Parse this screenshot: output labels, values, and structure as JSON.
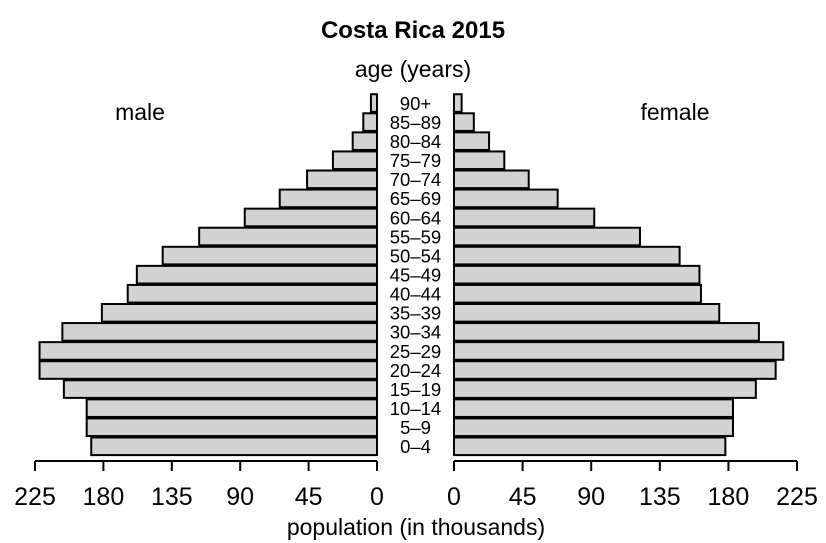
{
  "chart_data": {
    "type": "bar",
    "orientation": "horizontal",
    "title": "Costa Rica 2015",
    "ylabel": "age (years)",
    "xlabel": "population (in thousands)",
    "left_label": "male",
    "right_label": "female",
    "categories": [
      "0–4",
      "5–9",
      "10–14",
      "15–19",
      "20–24",
      "25–29",
      "30–34",
      "35–39",
      "40–44",
      "45–49",
      "50–54",
      "55–59",
      "60–64",
      "65–69",
      "70–74",
      "75–79",
      "80–84",
      "85–89",
      "90+"
    ],
    "series": [
      {
        "name": "male",
        "values": [
          188,
          191,
          191,
          206,
          222,
          222,
          207,
          181,
          164,
          158,
          141,
          117,
          87,
          64,
          46,
          29,
          16,
          9,
          4
        ]
      },
      {
        "name": "female",
        "values": [
          178,
          183,
          183,
          198,
          211,
          216,
          200,
          174,
          162,
          161,
          148,
          122,
          92,
          68,
          49,
          33,
          23,
          13,
          5
        ]
      }
    ],
    "xlim": [
      0,
      225
    ],
    "xticks": [
      225,
      180,
      135,
      90,
      45,
      0
    ],
    "right_xticks": [
      0,
      45,
      90,
      135,
      180,
      225
    ],
    "bar_color": "#d3d3d3",
    "edge_color": "#000000",
    "grid": false
  }
}
